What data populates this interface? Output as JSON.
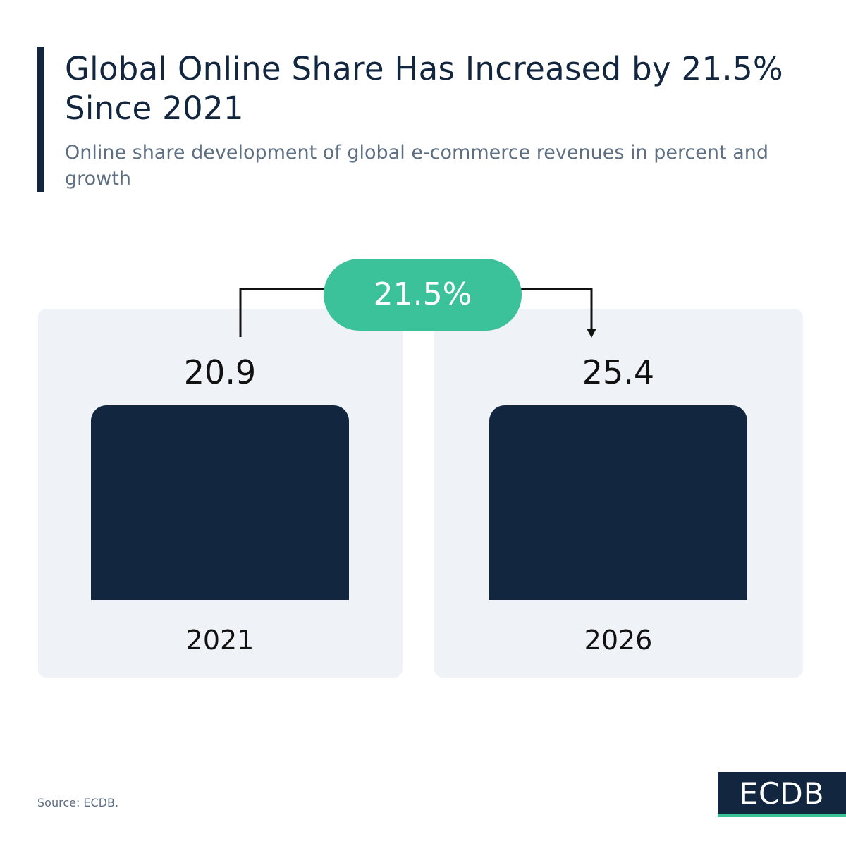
{
  "header": {
    "title": "Global Online Share Has Increased by 21.5% Since 2021",
    "subtitle": "Online share development of global e-commerce revenues in percent and growth"
  },
  "growth": {
    "label": "21.5%"
  },
  "source": "Source: ECDB.",
  "logo": "ECDB",
  "colors": {
    "bar": "#13263f",
    "panel": "#eff2f6",
    "accent": "#3cc29b"
  },
  "chart_data": {
    "type": "bar",
    "categories": [
      "2021",
      "2026"
    ],
    "values": [
      20.9,
      25.4
    ],
    "value_labels": [
      "20.9",
      "25.4"
    ],
    "title": "Global Online Share Has Increased by 21.5% Since 2021",
    "subtitle": "Online share development of global e-commerce revenues in percent and growth",
    "xlabel": "",
    "ylabel": "",
    "grid": false,
    "legend": "none",
    "annotations": [
      "21.5%"
    ]
  }
}
